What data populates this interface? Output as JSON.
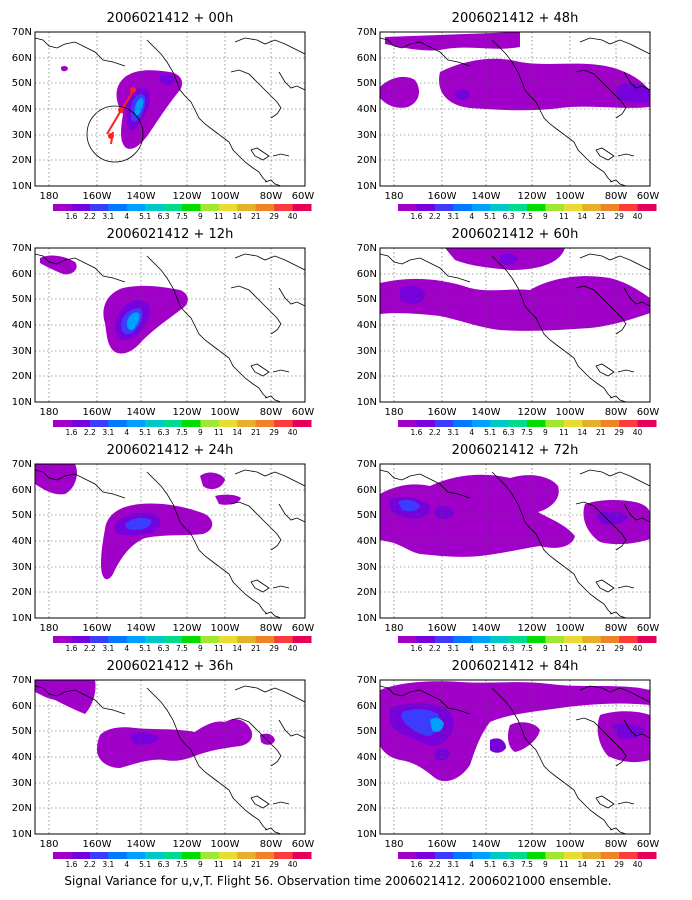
{
  "figure": {
    "caption": "Signal Variance for u,v,T. Flight 56. Observation time 2006021412. 2006021000 ensemble."
  },
  "axes": {
    "lat_ticks": [
      "70N",
      "60N",
      "50N",
      "40N",
      "30N",
      "20N",
      "10N"
    ],
    "lon_ticks": [
      "180",
      "160W",
      "140W",
      "120W",
      "100W",
      "80W",
      "60W"
    ]
  },
  "colorbar": {
    "labels": [
      "1.6",
      "2.2",
      "3.1",
      "4",
      "5.1",
      "6.3",
      "7.5",
      "9",
      "11",
      "14",
      "21",
      "29",
      "40"
    ],
    "colors": [
      "#a000c8",
      "#7800dc",
      "#3c3cff",
      "#0078ff",
      "#00a0ff",
      "#00c8c8",
      "#00dc8c",
      "#00dc00",
      "#a0e632",
      "#e6dc32",
      "#e6af2d",
      "#f08228",
      "#fa3c3c",
      "#e6005a"
    ]
  },
  "panels": [
    {
      "title": "2006021412 + 00h"
    },
    {
      "title": "2006021412 + 48h"
    },
    {
      "title": "2006021412 + 12h"
    },
    {
      "title": "2006021412 + 60h"
    },
    {
      "title": "2006021412 + 24h"
    },
    {
      "title": "2006021412 + 72h"
    },
    {
      "title": "2006021412 + 36h"
    },
    {
      "title": "2006021412 + 84h"
    }
  ]
}
